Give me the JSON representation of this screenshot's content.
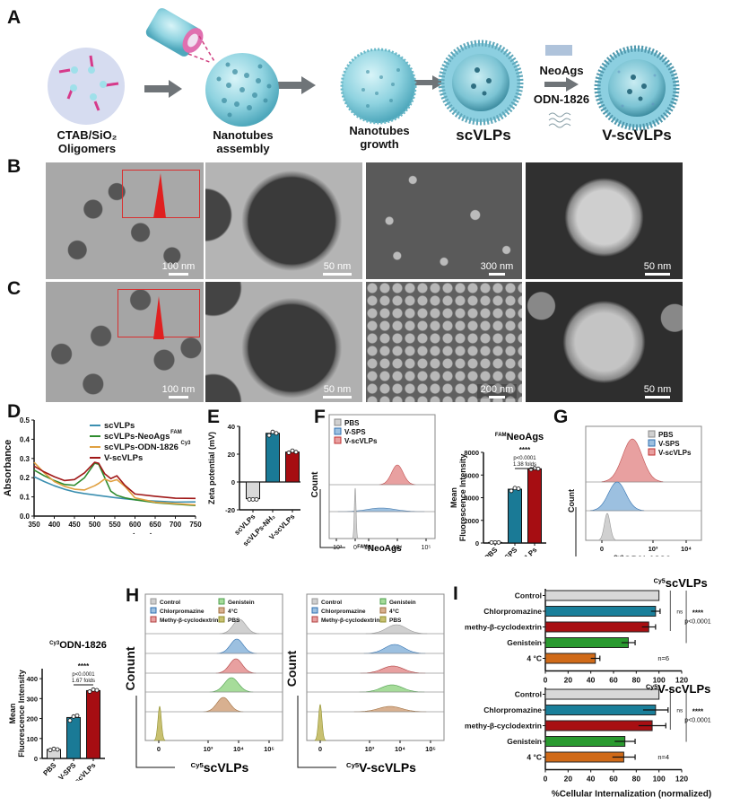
{
  "panels": {
    "A": {
      "label": "A",
      "steps": [
        {
          "line1": "CTAB/SiO₂",
          "line2": "Oligomers"
        },
        {
          "line1": "Nanotubes",
          "line2": "assembly"
        },
        {
          "line1": "Nanotubes",
          "line2": "growth"
        },
        {
          "line1": "scVLPs",
          "line2": ""
        },
        {
          "line1": "V-scVLPs",
          "line2": ""
        }
      ],
      "reagent_top": "NeoAgs",
      "reagent_bottom": "ODN-1826"
    },
    "B": {
      "label": "B",
      "scale_bars": [
        "100 nm",
        "50 nm",
        "300 nm",
        "50 nm"
      ]
    },
    "C": {
      "label": "C",
      "scale_bars": [
        "100 nm",
        "50 nm",
        "200 nm",
        "50 nm"
      ]
    },
    "D": {
      "label": "D"
    },
    "E": {
      "label": "E"
    },
    "F": {
      "label": "F"
    },
    "G": {
      "label": "G"
    },
    "H": {
      "label": "H"
    },
    "I": {
      "label": "I"
    }
  },
  "colors": {
    "scVLPs_line": "#3b8fb0",
    "neoags_line": "#2e8b2e",
    "odn_line": "#e0a040",
    "vscvlps_line": "#a01818",
    "pbs": "#d8d8d8",
    "vsps": "#1a7a96",
    "vscvlps": "#a60d12",
    "hist_red": "#e8a0a0",
    "hist_blue": "#9cc0e0",
    "hist_grey": "#d0d0d0",
    "hist_green": "#a6dc9a",
    "hist_orange": "#d8b090",
    "hist_olive": "#c8c070",
    "i_control": "#d8d8d8",
    "i_chlor": "#1a7f9a",
    "i_mbcd": "#a80f12",
    "i_gen": "#2a9a30",
    "i_4c": "#d06a18"
  },
  "chart_data": [
    {
      "id": "D",
      "type": "line",
      "title": "",
      "xlabel": "Wavelength（nm）",
      "ylabel": "Absorbance",
      "xlim": [
        350,
        750
      ],
      "ylim": [
        0.0,
        0.5
      ],
      "xticks": [
        "350",
        "400",
        "450",
        "500",
        "550",
        "600",
        "650",
        "700",
        "750"
      ],
      "yticks": [
        "0.0",
        "0.1",
        "0.2",
        "0.3",
        "0.4",
        "0.5"
      ],
      "legend": [
        "scVLPs",
        "scVLPs-NeoAgs",
        "scVLPs-ODN-1826",
        "V-scVLPs"
      ],
      "legend_superscripts": [
        "",
        "FAM",
        "Cy3",
        ""
      ],
      "x": [
        350,
        375,
        400,
        425,
        450,
        475,
        500,
        510,
        525,
        540,
        555,
        575,
        600,
        650,
        700,
        750
      ],
      "series": [
        {
          "name": "scVLPs",
          "values": [
            0.205,
            0.18,
            0.158,
            0.14,
            0.126,
            0.117,
            0.11,
            0.107,
            0.103,
            0.099,
            0.095,
            0.09,
            0.085,
            0.078,
            0.073,
            0.074
          ]
        },
        {
          "name": "scVLPs-NeoAgs",
          "values": [
            0.24,
            0.21,
            0.185,
            0.165,
            0.16,
            0.2,
            0.275,
            0.27,
            0.2,
            0.13,
            0.108,
            0.095,
            0.085,
            0.07,
            0.062,
            0.055
          ]
        },
        {
          "name": "scVLPs-ODN-1826",
          "values": [
            0.28,
            0.225,
            0.18,
            0.155,
            0.14,
            0.136,
            0.158,
            0.17,
            0.193,
            0.18,
            0.19,
            0.155,
            0.095,
            0.072,
            0.065,
            0.058
          ]
        },
        {
          "name": "V-scVLPs",
          "values": [
            0.26,
            0.23,
            0.205,
            0.185,
            0.19,
            0.225,
            0.28,
            0.275,
            0.22,
            0.195,
            0.21,
            0.16,
            0.115,
            0.103,
            0.093,
            0.092
          ]
        }
      ]
    },
    {
      "id": "E",
      "type": "bar",
      "ylabel": "Zeta potential (mV)",
      "ylim": [
        -20,
        40
      ],
      "yticks": [
        "-20",
        "0",
        "20",
        "40"
      ],
      "categories": [
        "scVLPs",
        "scVLPs-NH₂",
        "V-scVLPs"
      ],
      "values": [
        -12,
        35,
        21.5
      ],
      "points": [
        [
          -12.5,
          -12.5,
          -12.5
        ],
        [
          33.5,
          36,
          35
        ],
        [
          21,
          22.5,
          21.5
        ]
      ]
    },
    {
      "id": "F_hist",
      "type": "area",
      "xlabel": "FAMNeoAgs",
      "xlabel_sup": "FAM",
      "xlabel_main": "NeoAgs",
      "ylabel": "Count",
      "xticks": [
        "-10³",
        "0",
        "10³",
        "10⁴",
        "10⁵"
      ],
      "legend": [
        "PBS",
        "V-SPS",
        "V-scVLPs"
      ]
    },
    {
      "id": "F_bar",
      "type": "bar",
      "title": "NeoAgs",
      "title_sup": "FAM",
      "ylabel": "Mean Fluorescence Intensity",
      "ylabel1": "Mean",
      "ylabel2": "Fluorescence Intensity",
      "ylim": [
        0,
        8000
      ],
      "yticks": [
        "0",
        "2000",
        "4000",
        "6000",
        "8000"
      ],
      "categories": [
        "PBS",
        "V-SPS",
        "V-scVLPs"
      ],
      "values": [
        50,
        4750,
        6550
      ],
      "points": [
        [
          50,
          50,
          50
        ],
        [
          4600,
          4850,
          4800
        ],
        [
          6500,
          6600,
          6550
        ]
      ],
      "annotation": {
        "stars": "****",
        "p": "p<0.0001",
        "fold": "1.38 folds"
      }
    },
    {
      "id": "G_hist",
      "type": "area",
      "xlabel_sup": "Cy3",
      "xlabel_main": "ODN-1826",
      "ylabel": "Count",
      "xticks": [
        "0",
        "10³",
        "10⁴"
      ],
      "legend": [
        "PBS",
        "V-SPS",
        "V-scVLPs"
      ]
    },
    {
      "id": "G_bar",
      "type": "bar",
      "title_sup": "Cy3",
      "title": "ODN-1826",
      "ylabel1": "Mean",
      "ylabel2": "Fluorescence Intensity",
      "ylim": [
        0,
        450
      ],
      "yticks": [
        "0",
        "100",
        "200",
        "300",
        "400"
      ],
      "categories": [
        "PBS",
        "V-SPS",
        "V-scVLPs"
      ],
      "values": [
        45,
        205,
        340
      ],
      "points": [
        [
          42,
          48,
          45
        ],
        [
          190,
          210,
          215
        ],
        [
          335,
          345,
          342
        ]
      ],
      "annotation": {
        "stars": "****",
        "p": "p<0.0001",
        "fold": "1.67 folds"
      }
    },
    {
      "id": "H_left",
      "type": "area",
      "ylabel": "Conunt",
      "xlabel_sup": "Cy5",
      "xlabel_main": "scVLPs",
      "xticks": [
        "0",
        "10³",
        "10⁴",
        "10⁵"
      ],
      "legend": [
        "Control",
        "Chlorpromazine",
        "Methy-β-cyclodextrin",
        "Genistein",
        "4°C",
        "PBS"
      ]
    },
    {
      "id": "H_right",
      "type": "area",
      "ylabel": "Count",
      "xlabel_sup": "Cy5",
      "xlabel_main": "V-scVLPs",
      "xticks": [
        "0",
        "10³",
        "10⁴",
        "10⁵"
      ],
      "legend": [
        "Control",
        "Chlorpromazine",
        "Methy-β-cyclodextrin",
        "Genistein",
        "4°C",
        "PBS"
      ]
    },
    {
      "id": "I_top",
      "type": "bar",
      "orientation": "horizontal",
      "title_sup": "Cy5",
      "title": "scVLPs",
      "xlim": [
        0,
        120
      ],
      "xticks": [
        "0",
        "20",
        "40",
        "60",
        "80",
        "100",
        "120"
      ],
      "categories": [
        "Control",
        "Chlorpromazine",
        "methy-β-cyclodextrin",
        "Genistein",
        "4 °C"
      ],
      "values": [
        100,
        97,
        91,
        73,
        44
      ],
      "errors": [
        0,
        4,
        6,
        6,
        4
      ],
      "annotation": {
        "ns": "ns",
        "stars": "****",
        "p": "p<0.0001",
        "n": "n=6"
      }
    },
    {
      "id": "I_bottom",
      "type": "bar",
      "orientation": "horizontal",
      "title_sup": "Cy5",
      "title": "V-scVLPs",
      "xlabel": "%Cellular Internalization (normalized)",
      "xlim": [
        0,
        120
      ],
      "xticks": [
        "0",
        "20",
        "40",
        "60",
        "80",
        "100",
        "120"
      ],
      "categories": [
        "Control",
        "Chlorpromazine",
        "methy-β-cyclodextrin",
        "Genistein",
        "4 °C"
      ],
      "values": [
        100,
        97,
        94,
        70,
        69
      ],
      "errors": [
        0,
        11,
        12,
        9,
        10
      ],
      "annotation": {
        "ns": "ns",
        "stars": "****",
        "p": "p<0.0001",
        "n": "n=4"
      }
    }
  ]
}
